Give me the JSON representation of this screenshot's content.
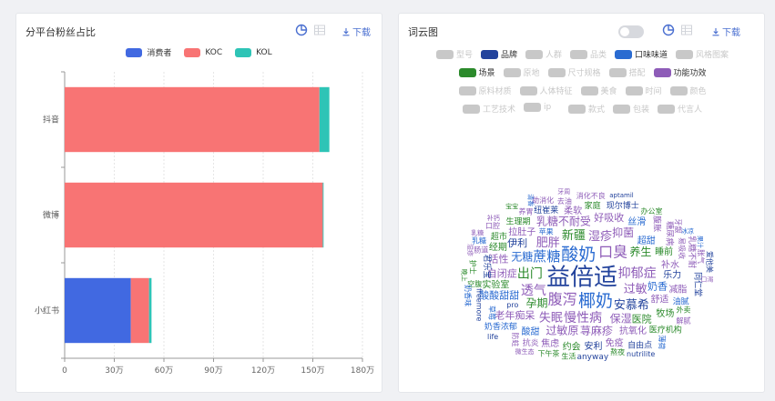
{
  "left_panel": {
    "title": "分平台粉丝占比",
    "download_label": "下载",
    "legend": [
      {
        "name": "消费者",
        "color": "#4169e1"
      },
      {
        "name": "KOC",
        "color": "#f87474"
      },
      {
        "name": "KOL",
        "color": "#2ec4b6"
      }
    ]
  },
  "chart_data": {
    "type": "bar",
    "orientation": "horizontal",
    "stacked": true,
    "categories": [
      "抖音",
      "微博",
      "小红书"
    ],
    "series": [
      {
        "name": "消费者",
        "values": [
          0.5,
          0.8,
          400000
        ]
      },
      {
        "name": "KOC",
        "values": [
          1540000,
          1560000,
          110000
        ]
      },
      {
        "name": "KOL",
        "values": [
          60000,
          5000,
          15000
        ]
      }
    ],
    "xlim": [
      0,
      1800000
    ],
    "xticks": [
      0,
      300000,
      600000,
      900000,
      1200000,
      1500000,
      1800000
    ],
    "xtick_labels": [
      "0",
      "30万",
      "60万",
      "90万",
      "120万",
      "150万",
      "180万"
    ],
    "grid": true,
    "legend_position": "top-center"
  },
  "right_panel": {
    "title": "词云图",
    "download_label": "下载",
    "toggle_on": false,
    "categories": [
      {
        "label": "型号",
        "color": "#c8c8c8",
        "active": false
      },
      {
        "label": "品牌",
        "color": "#23439c",
        "active": true
      },
      {
        "label": "人群",
        "color": "#c8c8c8",
        "active": false
      },
      {
        "label": "品类",
        "color": "#c8c8c8",
        "active": false
      },
      {
        "label": "口味味道",
        "color": "#2a6bd1",
        "active": true
      },
      {
        "label": "风格图案",
        "color": "#c8c8c8",
        "active": false
      },
      {
        "label": "场景",
        "color": "#2b8a2b",
        "active": true
      },
      {
        "label": "原地",
        "color": "#c8c8c8",
        "active": false
      },
      {
        "label": "尺寸规格",
        "color": "#c8c8c8",
        "active": false
      },
      {
        "label": "搭配",
        "color": "#c8c8c8",
        "active": false
      },
      {
        "label": "功能功效",
        "color": "#8e5cb8",
        "active": true
      },
      {
        "label": "原料材质",
        "color": "#c8c8c8",
        "active": false
      },
      {
        "label": "人体特征",
        "color": "#c8c8c8",
        "active": false
      },
      {
        "label": "美食",
        "color": "#c8c8c8",
        "active": false
      },
      {
        "label": "时间",
        "color": "#c8c8c8",
        "active": false
      },
      {
        "label": "颜色",
        "color": "#c8c8c8",
        "active": false
      },
      {
        "label": "工艺技术",
        "color": "#c8c8c8",
        "active": false
      },
      {
        "label": "ip",
        "color": "#c8c8c8",
        "active": false
      },
      {
        "label": "款式",
        "color": "#c8c8c8",
        "active": false
      },
      {
        "label": "包装",
        "color": "#c8c8c8",
        "active": false
      },
      {
        "label": "代言人",
        "color": "#c8c8c8",
        "active": false
      }
    ],
    "words": [
      {
        "text": "益倍适",
        "cat": "brand",
        "size": 26
      },
      {
        "text": "酸奶",
        "cat": "taste",
        "size": 19
      },
      {
        "text": "椰奶",
        "cat": "taste",
        "size": 19
      },
      {
        "text": "腹泻",
        "cat": "func",
        "size": 16
      },
      {
        "text": "口臭",
        "cat": "func",
        "size": 16
      },
      {
        "text": "蔗糖",
        "cat": "taste",
        "size": 15
      },
      {
        "text": "抑郁症",
        "cat": "func",
        "size": 14
      },
      {
        "text": "慢性病",
        "cat": "func",
        "size": 14
      },
      {
        "text": "透气",
        "cat": "func",
        "size": 14
      },
      {
        "text": "过敏",
        "cat": "func",
        "size": 13
      },
      {
        "text": "出门",
        "cat": "scene",
        "size": 14
      },
      {
        "text": "肥胖",
        "cat": "func",
        "size": 13
      },
      {
        "text": "新疆",
        "cat": "scene",
        "size": 13
      },
      {
        "text": "孕期",
        "cat": "scene",
        "size": 12
      },
      {
        "text": "安慕希",
        "cat": "brand",
        "size": 13
      },
      {
        "text": "无糖",
        "cat": "taste",
        "size": 12
      },
      {
        "text": "湿疹",
        "cat": "func",
        "size": 13
      },
      {
        "text": "失眠",
        "cat": "func",
        "size": 13
      },
      {
        "text": "养生",
        "cat": "scene",
        "size": 12
      },
      {
        "text": "保湿",
        "cat": "func",
        "size": 12
      },
      {
        "text": "抑菌",
        "cat": "func",
        "size": 12
      },
      {
        "text": "酸酸甜甜",
        "cat": "taste",
        "size": 11
      },
      {
        "text": "老年痴呆",
        "cat": "func",
        "size": 11
      },
      {
        "text": "荨麻疹",
        "cat": "func",
        "size": 12
      },
      {
        "text": "乳糖不耐受",
        "cat": "func",
        "size": 12
      },
      {
        "text": "自闭症",
        "cat": "func",
        "size": 11
      },
      {
        "text": "伊利",
        "cat": "brand",
        "size": 11
      },
      {
        "text": "奶香",
        "cat": "taste",
        "size": 11
      },
      {
        "text": "过敏原",
        "cat": "func",
        "size": 12
      },
      {
        "text": "好吸收",
        "cat": "func",
        "size": 11
      },
      {
        "text": "活性",
        "cat": "func",
        "size": 11
      },
      {
        "text": "医院",
        "cat": "scene",
        "size": 11
      },
      {
        "text": "超甜",
        "cat": "taste",
        "size": 10
      },
      {
        "text": "舒适",
        "cat": "func",
        "size": 10
      },
      {
        "text": "拉肚子",
        "cat": "func",
        "size": 10
      },
      {
        "text": "睡前",
        "cat": "scene",
        "size": 10
      },
      {
        "text": "补水",
        "cat": "func",
        "size": 10
      },
      {
        "text": "抗氧化",
        "cat": "func",
        "size": 10
      },
      {
        "text": "生理期",
        "cat": "scene",
        "size": 9
      },
      {
        "text": "酸甜",
        "cat": "taste",
        "size": 10
      },
      {
        "text": "实验室",
        "cat": "scene",
        "size": 10
      },
      {
        "text": "君乐宝",
        "cat": "brand",
        "size": 9
      },
      {
        "text": "乐力",
        "cat": "brand",
        "size": 10
      },
      {
        "text": "柔软",
        "cat": "func",
        "size": 10
      },
      {
        "text": "纽崔莱",
        "cat": "brand",
        "size": 9
      },
      {
        "text": "丝滑",
        "cat": "taste",
        "size": 10
      },
      {
        "text": "经期",
        "cat": "scene",
        "size": 10
      },
      {
        "text": "家庭",
        "cat": "scene",
        "size": 9
      },
      {
        "text": "糖尿病",
        "cat": "func",
        "size": 9
      },
      {
        "text": "现尔博士",
        "cat": "brand",
        "size": 9
      },
      {
        "text": "牧场",
        "cat": "scene",
        "size": 10
      },
      {
        "text": "减脂",
        "cat": "func",
        "size": 10
      },
      {
        "text": "免疫",
        "cat": "func",
        "size": 10
      },
      {
        "text": "奶香浓郁",
        "cat": "taste",
        "size": 9
      },
      {
        "text": "腹胀",
        "cat": "func",
        "size": 9
      },
      {
        "text": "超市",
        "cat": "scene",
        "size": 9
      },
      {
        "text": "油腻",
        "cat": "taste",
        "size": 9
      },
      {
        "text": "乳糖不耐",
        "cat": "func",
        "size": 9
      },
      {
        "text": "医疗机构",
        "cat": "scene",
        "size": 9
      },
      {
        "text": "安利",
        "cat": "brand",
        "size": 10
      },
      {
        "text": "约会",
        "cat": "scene",
        "size": 10
      },
      {
        "text": "焦虑",
        "cat": "func",
        "size": 10
      },
      {
        "text": "抗炎",
        "cat": "func",
        "size": 9
      },
      {
        "text": "同仁堂",
        "cat": "brand",
        "size": 9
      },
      {
        "text": "自由点",
        "cat": "brand",
        "size": 9
      },
      {
        "text": "freemore",
        "cat": "brand",
        "size": 8
      },
      {
        "text": "anyway",
        "cat": "brand",
        "size": 9
      },
      {
        "text": "pro",
        "cat": "brand",
        "size": 8
      },
      {
        "text": "苹果",
        "cat": "taste",
        "size": 8
      },
      {
        "text": "草莓",
        "cat": "taste",
        "size": 8
      },
      {
        "text": "去油",
        "cat": "func",
        "size": 8
      },
      {
        "text": "养胃",
        "cat": "func",
        "size": 8
      },
      {
        "text": "易吸收",
        "cat": "func",
        "size": 8
      },
      {
        "text": "空腹",
        "cat": "scene",
        "size": 8
      },
      {
        "text": "微生态",
        "cat": "func",
        "size": 7
      },
      {
        "text": "肠道",
        "cat": "func",
        "size": 8
      },
      {
        "text": "防蛀",
        "cat": "func",
        "size": 8
      },
      {
        "text": "外卖",
        "cat": "scene",
        "size": 8
      },
      {
        "text": "熬夜",
        "cat": "scene",
        "size": 8
      },
      {
        "text": "护士",
        "cat": "scene",
        "size": 8
      },
      {
        "text": "生活",
        "cat": "scene",
        "size": 8
      },
      {
        "text": "口腔",
        "cat": "func",
        "size": 8
      },
      {
        "text": "牙龈",
        "cat": "func",
        "size": 8
      },
      {
        "text": "下午茶",
        "cat": "scene",
        "size": 8
      },
      {
        "text": "助消化",
        "cat": "func",
        "size": 8
      },
      {
        "text": "胀气",
        "cat": "func",
        "size": 8
      },
      {
        "text": "乳糖",
        "cat": "taste",
        "size": 8
      },
      {
        "text": "消化不良",
        "cat": "func",
        "size": 8
      },
      {
        "text": "奶香味",
        "cat": "taste",
        "size": 8
      },
      {
        "text": "办公室",
        "cat": "scene",
        "size": 8
      },
      {
        "text": "nutrilite",
        "cat": "brand",
        "size": 8
      },
      {
        "text": "aptamil",
        "cat": "brand",
        "size": 7
      },
      {
        "text": "爱他美",
        "cat": "brand",
        "size": 8
      },
      {
        "text": "life",
        "cat": "brand",
        "size": 8
      },
      {
        "text": "湿疹",
        "cat": "func",
        "size": 7
      },
      {
        "text": "解腻",
        "cat": "func",
        "size": 8
      },
      {
        "text": "乳糖",
        "cat": "func",
        "size": 7
      },
      {
        "text": "补钙",
        "cat": "func",
        "size": 7
      },
      {
        "text": "晚上",
        "cat": "scene",
        "size": 7
      },
      {
        "text": "宝宝",
        "cat": "scene",
        "size": 7
      },
      {
        "text": "牙周",
        "cat": "func",
        "size": 7
      },
      {
        "text": "薄荷",
        "cat": "taste",
        "size": 8
      },
      {
        "text": "果汁",
        "cat": "taste",
        "size": 7
      },
      {
        "text": "冰凉",
        "cat": "taste",
        "size": 7
      },
      {
        "text": "口渴",
        "cat": "func",
        "size": 7
      },
      {
        "text": "清香",
        "cat": "taste",
        "size": 7
      }
    ]
  }
}
